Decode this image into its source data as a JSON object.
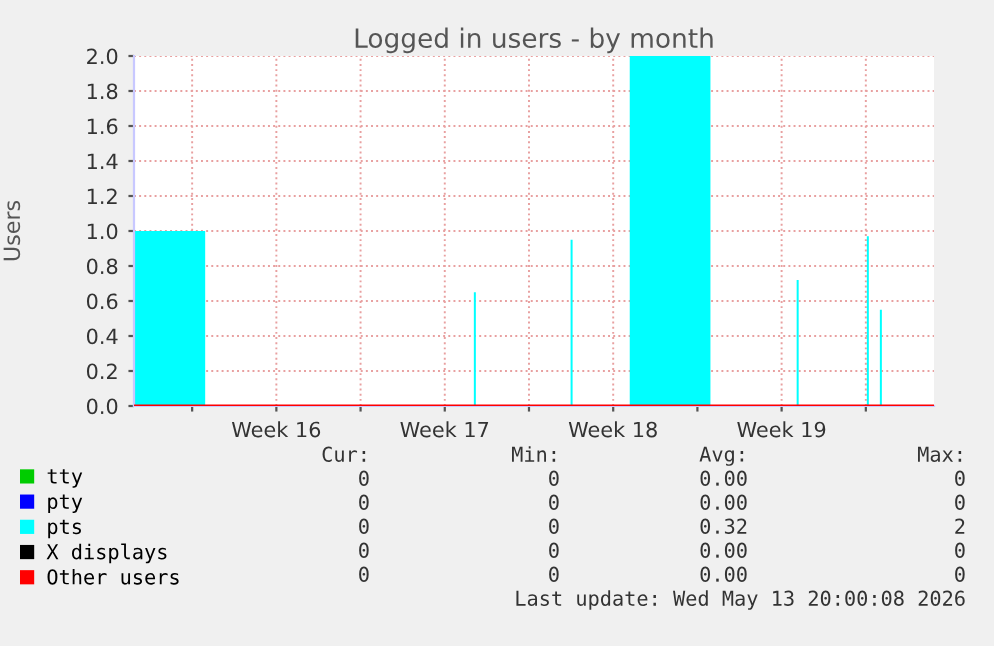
{
  "chart_data": {
    "type": "area",
    "title": "Logged in users - by month",
    "ylabel": "Users",
    "series": [
      {
        "name": "tty",
        "color": "#00cc00",
        "type": "line"
      },
      {
        "name": "pty",
        "color": "#0000ff",
        "type": "line"
      },
      {
        "name": "pts",
        "color": "#00ffff",
        "x": [
          "2026-04-10T14:00",
          "2026-04-13T13:00",
          "2026-04-13T13:00",
          "2026-04-24T17:00",
          "2026-04-24T17:00",
          "2026-04-24T19:00",
          "2026-04-24T19:00",
          "2026-04-28T17:30",
          "2026-04-28T17:30",
          "2026-04-28T19:30",
          "2026-04-28T19:30",
          "2026-05-01T04:30",
          "2026-05-01T04:30",
          "2026-05-04T13:00",
          "2026-05-04T13:00",
          "2026-05-08T03:00",
          "2026-05-08T03:00",
          "2026-05-08T05:00",
          "2026-05-08T05:00",
          "2026-05-11T01:00",
          "2026-05-11T01:00",
          "2026-05-11T03:00",
          "2026-05-11T03:00",
          "2026-05-11T14:00",
          "2026-05-11T14:00",
          "2026-05-11T16:00",
          "2026-05-11T16:00",
          "2026-05-13T20:00"
        ],
        "values": [
          1,
          1,
          0,
          0,
          0.65,
          0.65,
          0,
          0,
          0.95,
          0.95,
          0,
          0,
          2,
          2,
          0,
          0,
          0.72,
          0.72,
          0,
          0,
          0.97,
          0.97,
          0,
          0,
          0.55,
          0.55,
          0,
          0
        ]
      },
      {
        "name": "X displays",
        "color": "#000000",
        "type": "line"
      },
      {
        "name": "Other users",
        "color": "#ff0000",
        "type": "line",
        "x": [
          "2026-04-10T14:00",
          "2026-05-13T20:00"
        ],
        "values": [
          0,
          0
        ]
      }
    ],
    "xlim": [
      "2026-04-10T14:00",
      "2026-05-13T20:00"
    ],
    "xticks": [
      {
        "value": "2026-04-13",
        "label": null
      },
      {
        "value": "2026-04-16T12:00",
        "label": "Week 16"
      },
      {
        "value": "2026-04-20",
        "label": null
      },
      {
        "value": "2026-04-23T12:00",
        "label": "Week 17"
      },
      {
        "value": "2026-04-27",
        "label": null
      },
      {
        "value": "2026-04-30T12:00",
        "label": "Week 18"
      },
      {
        "value": "2026-05-04",
        "label": null
      },
      {
        "value": "2026-05-07T12:00",
        "label": "Week 19"
      },
      {
        "value": "2026-05-11",
        "label": null
      }
    ],
    "ylim": [
      0,
      2.0
    ],
    "yticks": [
      {
        "value": 0,
        "label": "0.0"
      },
      {
        "value": 0.2,
        "label": "0.2"
      },
      {
        "value": 0.4,
        "label": "0.4"
      },
      {
        "value": 0.6,
        "label": "0.6"
      },
      {
        "value": 0.8,
        "label": "0.8"
      },
      {
        "value": 1.0,
        "label": "1.0"
      },
      {
        "value": 1.2,
        "label": "1.2"
      },
      {
        "value": 1.4,
        "label": "1.4"
      },
      {
        "value": 1.6,
        "label": "1.6"
      },
      {
        "value": 1.8,
        "label": "1.8"
      },
      {
        "value": 2.0,
        "label": "2.0"
      }
    ],
    "grid": true,
    "legend": "bottom",
    "annotations": [
      "Cur:",
      "Min:",
      "Avg:",
      "Max:",
      "0",
      "0",
      "0.00",
      "0",
      "0",
      "0",
      "0.00",
      "0",
      "0",
      "0",
      "0.32",
      "2",
      "0",
      "0",
      "0.00",
      "0",
      "0",
      "0",
      "0.00",
      "0",
      "Last update: Wed May 13 20:00:08 2026"
    ]
  }
}
